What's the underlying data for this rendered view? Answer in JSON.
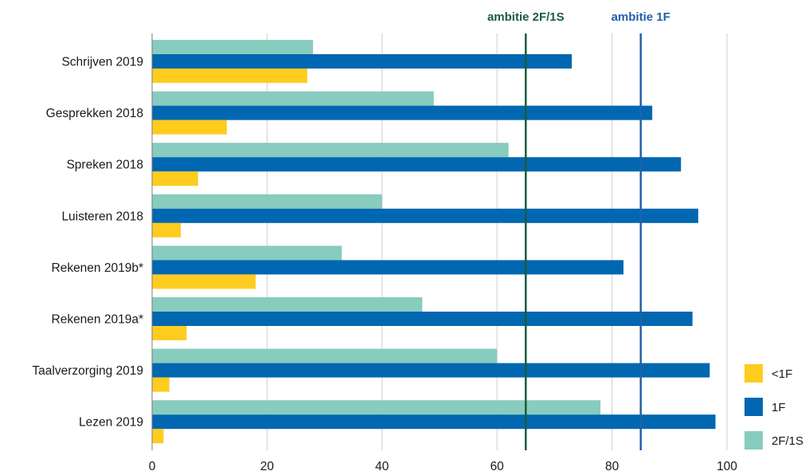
{
  "chart_data": {
    "type": "bar",
    "orientation": "horizontal",
    "title": "",
    "xlabel": "",
    "ylabel": "",
    "xlim": [
      0,
      100
    ],
    "x_ticks": [
      0,
      20,
      40,
      60,
      80,
      100
    ],
    "grid": "vertical",
    "legend_placement": "bottom-right",
    "categories": [
      "Schrijven 2019",
      "Gesprekken 2018",
      "Spreken 2018",
      "Luisteren 2018",
      "Rekenen 2019b*",
      "Rekenen 2019a*",
      "Taalverzorging 2019",
      "Lezen 2019"
    ],
    "series": [
      {
        "name": "2F/1S",
        "color": "#88cbbf",
        "values": [
          28,
          49,
          62,
          40,
          33,
          47,
          60,
          78
        ]
      },
      {
        "name": "1F",
        "color": "#0067b0",
        "values": [
          73,
          87,
          92,
          95,
          82,
          94,
          97,
          98
        ]
      },
      {
        "name": "<1F",
        "color": "#fecc1f",
        "values": [
          27,
          13,
          8,
          5,
          18,
          6,
          3,
          2
        ]
      }
    ],
    "legend": [
      "<1F",
      "1F",
      "2F/1S"
    ],
    "reference_lines": [
      {
        "label": "ambitie 2F/1S",
        "value": 65,
        "color": "#1c5c3f"
      },
      {
        "label": "ambitie 1F",
        "value": 85,
        "color": "#1f62a8"
      }
    ]
  }
}
